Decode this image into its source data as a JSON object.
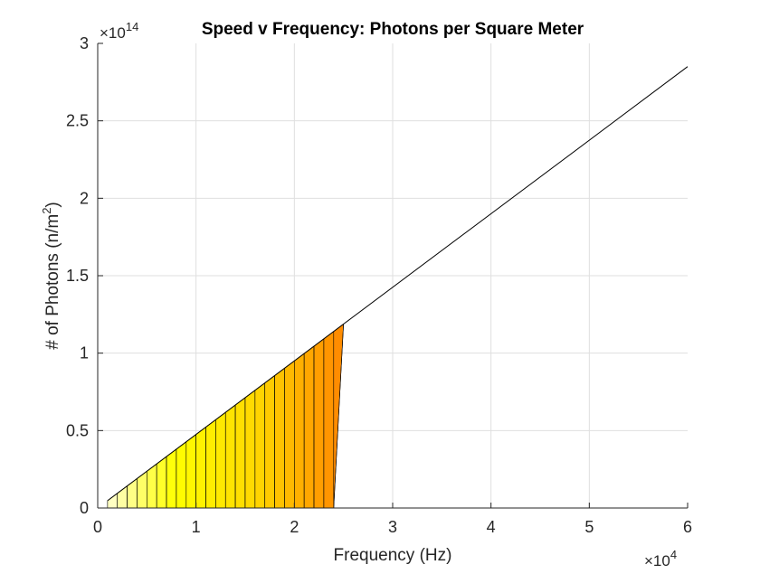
{
  "chart_data": {
    "type": "line",
    "title": "Speed v Frequency: Photons per Square Meter",
    "xlabel": "Frequency (Hz)",
    "ylabel": "# of Photons (n/m²)",
    "ylabel_main": "# of Photons (n/m",
    "ylabel_sup": "2",
    "ylabel_close": ")",
    "x_exponent_prefix": "×10",
    "x_exponent": "4",
    "y_exponent_prefix": "×10",
    "y_exponent": "14",
    "xlim": [
      0,
      60000
    ],
    "ylim": [
      0,
      300000000000000
    ],
    "xticks": [
      0,
      10000,
      20000,
      30000,
      40000,
      50000,
      60000
    ],
    "xtick_labels": [
      "0",
      "1",
      "2",
      "3",
      "4",
      "5",
      "6"
    ],
    "yticks": [
      0,
      50000000000000,
      100000000000000,
      150000000000000,
      200000000000000,
      250000000000000,
      300000000000000
    ],
    "ytick_labels": [
      "0",
      "0.5",
      "1",
      "1.5",
      "2",
      "2.5",
      "3"
    ],
    "grid": true,
    "series": [
      {
        "color": "#000000",
        "x": [
          1000,
          60000
        ],
        "y": [
          4750000000000,
          285000000000000
        ]
      }
    ],
    "filled_region": {
      "x_start": 1000,
      "x_end": 25000,
      "step": 1000,
      "baseline": 0,
      "slope": 4750000000,
      "colormap": [
        "#ffffff",
        "#ffff00",
        "#ffd700",
        "#ff8c00"
      ]
    },
    "colors": {
      "line": "#000000",
      "grid": "#dfdfdf",
      "axis": "#262626"
    }
  }
}
